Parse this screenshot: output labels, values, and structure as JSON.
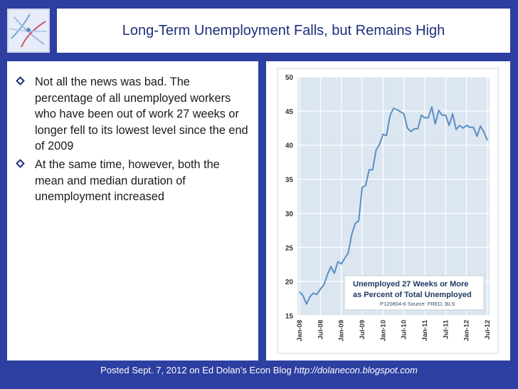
{
  "title": "Long-Term Unemployment Falls, but Remains High",
  "bullets": [
    "Not all the news was bad. The percentage of all unemployed workers who have been out of work 27 weeks or longer fell to its lowest level since the end of 2009",
    "At the same time, however, both the mean and median duration of unemployment increased"
  ],
  "footer": {
    "text": "Posted Sept. 7, 2012 on Ed Dolan’s Econ Blog ",
    "link": "http://dolanecon.blogspot.com"
  },
  "icons": {
    "logo": "network-logo-icon",
    "bullet": "diamond-bullet-icon"
  },
  "colors": {
    "background": "#2d3fa0",
    "line": "#5b8ec4",
    "plot_bg": "#dbe6f1",
    "title": "#1f2f7a"
  },
  "chart_data": {
    "type": "line",
    "title": "",
    "xlabel": "",
    "ylabel": "",
    "ylim": [
      15,
      50
    ],
    "yticks": [
      "15",
      "20",
      "25",
      "30",
      "35",
      "40",
      "45",
      "50"
    ],
    "xticks": [
      "Jan-08",
      "Jul-08",
      "Jan-09",
      "Jul-09",
      "Jan-10",
      "Jul-10",
      "Jan-11",
      "Jul-11",
      "Jan-12",
      "Jul-12"
    ],
    "grid": true,
    "legend_text": [
      "Unemployed 27 Weeks or More",
      "as Percent of Total Unemployed"
    ],
    "source_text": "P120804-6 Source: FRED, BLS",
    "series": [
      {
        "x": [
          "Jan-08",
          "Feb-08",
          "Mar-08",
          "Apr-08",
          "May-08",
          "Jun-08",
          "Jul-08",
          "Aug-08",
          "Sep-08",
          "Oct-08",
          "Nov-08",
          "Dec-08",
          "Jan-09",
          "Feb-09",
          "Mar-09",
          "Apr-09",
          "May-09",
          "Jun-09",
          "Jul-09",
          "Aug-09",
          "Sep-09",
          "Oct-09",
          "Nov-09",
          "Dec-09",
          "Jan-10",
          "Feb-10",
          "Mar-10",
          "Apr-10",
          "May-10",
          "Jun-10",
          "Jul-10",
          "Aug-10",
          "Sep-10",
          "Oct-10",
          "Nov-10",
          "Dec-10",
          "Jan-11",
          "Feb-11",
          "Mar-11",
          "Apr-11",
          "May-11",
          "Jun-11",
          "Jul-11",
          "Aug-11",
          "Sep-11",
          "Oct-11",
          "Nov-11",
          "Dec-11",
          "Jan-12",
          "Feb-12",
          "Mar-12",
          "Apr-12",
          "May-12",
          "Jun-12",
          "Jul-12"
        ],
        "values": [
          18.5,
          17.9,
          16.7,
          17.8,
          18.3,
          18.1,
          18.9,
          19.5,
          21.0,
          22.2,
          21.2,
          22.9,
          22.6,
          23.4,
          24.2,
          26.9,
          28.5,
          28.9,
          33.8,
          34.1,
          36.4,
          36.4,
          39.3,
          40.1,
          41.6,
          41.4,
          44.3,
          45.4,
          45.2,
          44.9,
          44.6,
          42.5,
          42.0,
          42.4,
          42.4,
          44.4,
          44.0,
          44.0,
          45.6,
          43.1,
          45.1,
          44.4,
          44.4,
          42.9,
          44.6,
          42.3,
          42.9,
          42.5,
          42.9,
          42.6,
          42.6,
          41.3,
          42.8,
          41.9,
          40.7
        ]
      }
    ]
  }
}
